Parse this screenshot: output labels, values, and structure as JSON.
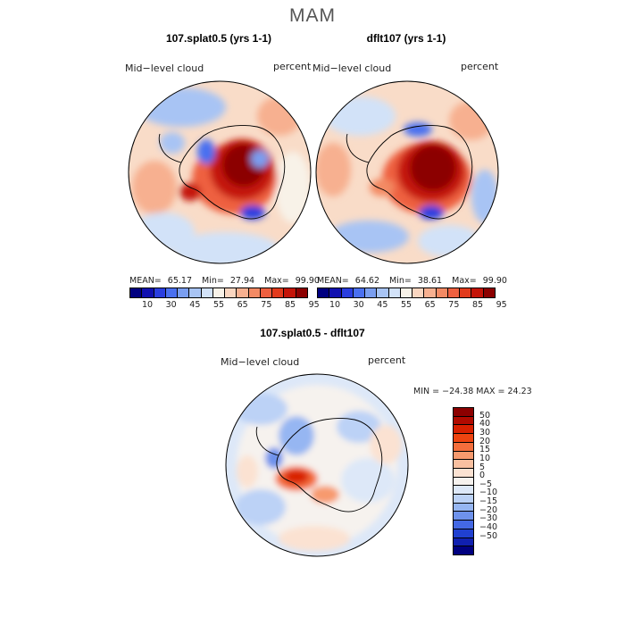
{
  "figure": {
    "season": "MAM",
    "panels": [
      {
        "title": "107.splat0.5 (yrs 1-1)",
        "variable": "Mid−level cloud",
        "units": "percent",
        "stats": {
          "mean_label": "MEAN=",
          "mean": "65.17",
          "min_label": "Min=",
          "min": "27.94",
          "max_label": "Max=",
          "max": "99.90"
        }
      },
      {
        "title": "dflt107 (yrs 1-1)",
        "variable": "Mid−level cloud",
        "units": "percent",
        "stats": {
          "mean_label": "MEAN=",
          "mean": "64.62",
          "min_label": "Min=",
          "min": "38.61",
          "max_label": "Max=",
          "max": "99.90"
        }
      }
    ],
    "diff_panel": {
      "title": "107.splat0.5 - dflt107",
      "variable": "Mid−level cloud",
      "units": "percent",
      "minmax": "MIN = −24.38 MAX =  24.23"
    },
    "colorbar_abs": {
      "colors": [
        "#000080",
        "#1010b0",
        "#2a3ee0",
        "#4a70f0",
        "#7a9ef0",
        "#a8c4f4",
        "#d2e2f8",
        "#f8f2e8",
        "#fad6c0",
        "#f7b090",
        "#f38a64",
        "#ee6040",
        "#e23a1c",
        "#c41408",
        "#8c0000"
      ],
      "labels": [
        "10",
        "30",
        "45",
        "55",
        "65",
        "75",
        "85",
        "95"
      ]
    },
    "colorbar_diff": {
      "colors": [
        "#8c0000",
        "#b00a00",
        "#d82000",
        "#ee4410",
        "#f46e3c",
        "#f79a6e",
        "#f9c0a0",
        "#fbe2d2",
        "#f6f2ee",
        "#dde8f8",
        "#bcd2f6",
        "#96b6f2",
        "#6e92ec",
        "#4468e4",
        "#2040d0",
        "#1020b0",
        "#000080"
      ],
      "labels": [
        "50",
        "40",
        "30",
        "20",
        "15",
        "10",
        "5",
        "0",
        "−5",
        "−10",
        "−15",
        "−20",
        "−30",
        "−40",
        "−50"
      ]
    }
  }
}
